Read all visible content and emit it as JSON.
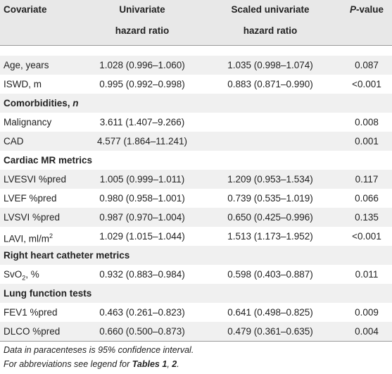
{
  "header": {
    "covariate": "Covariate",
    "univariate_line1": "Univariate",
    "univariate_line2": "hazard ratio",
    "scaled_line1": "Scaled univariate",
    "scaled_line2": "hazard ratio",
    "p_italic": "P",
    "p_rest": "-value"
  },
  "rows": {
    "age": {
      "label": "Age, years",
      "uni": "1.028 (0.996–1.060)",
      "scaled": "1.035 (0.998–1.074)",
      "p": "0.087"
    },
    "iswd": {
      "label": "ISWD, m",
      "uni": "0.995 (0.992–0.998)",
      "scaled": "0.883 (0.871–0.990)",
      "p": "<0.001"
    },
    "comorb": {
      "label": "Comorbidities, ",
      "label_italic": "n"
    },
    "malignancy": {
      "label": "Malignancy",
      "uni": "3.611 (1.407–9.266)",
      "scaled": "",
      "p": "0.008"
    },
    "cad": {
      "label": "CAD",
      "uni": "4.577 (1.864–11.241)",
      "scaled": "",
      "p": "0.001"
    },
    "cardiac": {
      "label": "Cardiac MR metrics"
    },
    "lvesvi": {
      "label": "LVESVI %pred",
      "uni": "1.005 (0.999–1.011)",
      "scaled": "1.209 (0.953–1.534)",
      "p": "0.117"
    },
    "lvef": {
      "label": "LVEF %pred",
      "uni": "0.980 (0.958–1.001)",
      "scaled": "0.739 (0.535–1.019)",
      "p": "0.066"
    },
    "lvsvi": {
      "label": "LVSVI %pred",
      "uni": "0.987 (0.970–1.004)",
      "scaled": "0.650 (0.425–0.996)",
      "p": "0.135"
    },
    "lavi": {
      "label": "LAVI, ml/m",
      "label_sup": "2",
      "uni": "1.029 (1.015–1.044)",
      "scaled": "1.513 (1.173–1.952)",
      "p": "<0.001"
    },
    "rhc": {
      "label": "Right heart catheter metrics"
    },
    "svo2": {
      "label_a": "SvO",
      "label_sub": "2",
      "label_b": ", %",
      "uni": "0.932 (0.883–0.984)",
      "scaled": "0.598 (0.403–0.887)",
      "p": "0.011"
    },
    "lung": {
      "label": "Lung function tests"
    },
    "fev1": {
      "label": "FEV1 %pred",
      "uni": "0.463 (0.261–0.823)",
      "scaled": "0.641 (0.498–0.825)",
      "p": "0.009"
    },
    "dlco": {
      "label": "DLCO %pred",
      "uni": "0.660 (0.500–0.873)",
      "scaled": "0.479 (0.361–0.635)",
      "p": "0.004"
    }
  },
  "footnotes": {
    "line1": "Data in paracenteses is 95% confidence interval.",
    "line2_prefix": "For abbreviations see legend for ",
    "line2_t1": "Tables 1",
    "line2_sep": ", ",
    "line2_t2": "2",
    "line2_end": "."
  }
}
